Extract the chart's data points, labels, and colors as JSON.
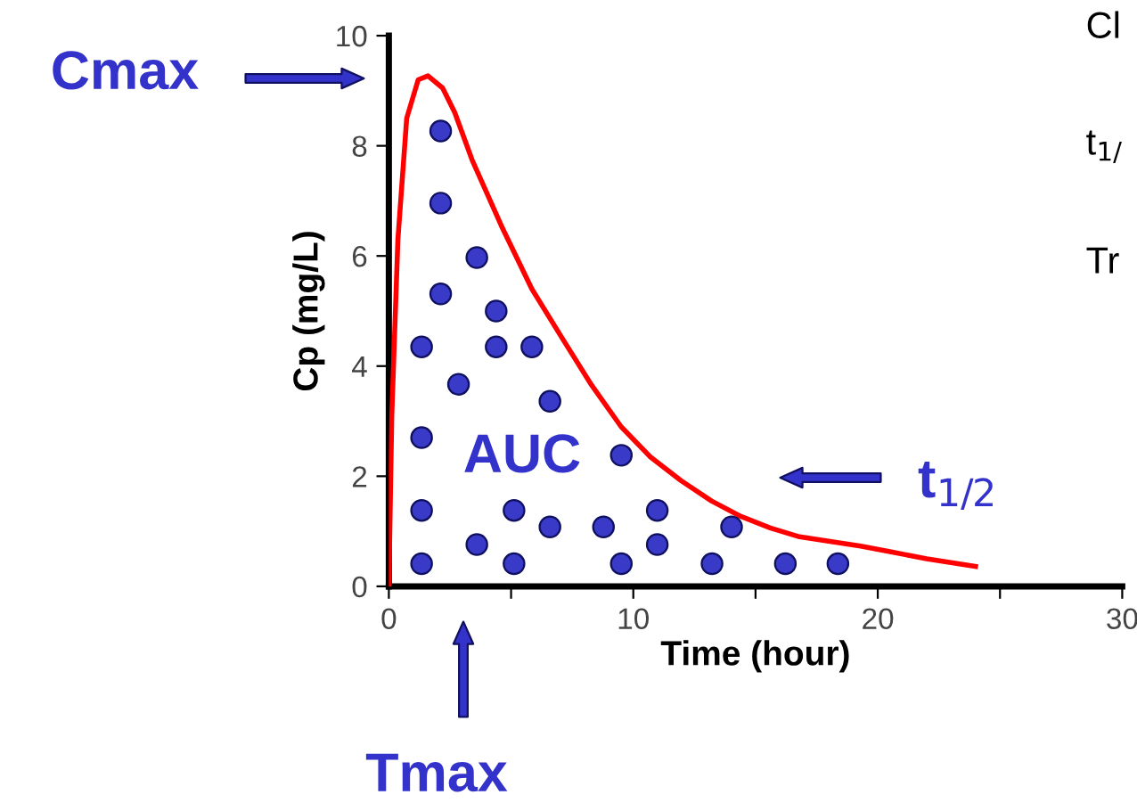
{
  "chart_data": {
    "type": "line",
    "xlabel": "Time (hour)",
    "ylabel": "Cp (mg/L)",
    "xlim": [
      0,
      30
    ],
    "ylim": [
      0,
      10
    ],
    "xticks": [
      0,
      {
        "value": 5,
        "label": null
      },
      10,
      {
        "value": 15,
        "label": null
      },
      20,
      {
        "value": 25,
        "label": null
      },
      30
    ],
    "yticks": [
      0,
      2,
      4,
      6,
      8,
      10
    ],
    "grid": false,
    "legend": false,
    "series": [
      {
        "color": "#ff0000",
        "marker": "none",
        "line_style": "solid",
        "x": [
          0,
          0.12,
          0.37,
          0.73,
          1.2,
          1.6,
          2.2,
          2.7,
          3.4,
          4.6,
          5.85,
          7.1,
          8.3,
          9.5,
          10.7,
          11.95,
          13.2,
          14.4,
          15.6,
          16.8,
          19.3,
          20.5,
          22,
          24
        ],
        "values": [
          0,
          3.1,
          6.3,
          8.5,
          9.2,
          9.27,
          9.05,
          8.6,
          7.75,
          6.55,
          5.4,
          4.5,
          3.65,
          2.9,
          2.35,
          1.92,
          1.55,
          1.27,
          1.06,
          0.9,
          0.73,
          0.63,
          0.5,
          0.36
        ]
      },
      {
        "type": "scatter",
        "color": "#3a3ac8",
        "marker": "circle",
        "x": [
          2.12,
          2.12,
          3.6,
          2.12,
          4.39,
          1.34,
          4.39,
          5.85,
          2.85,
          6.59,
          1.34,
          9.51,
          1.34,
          5.12,
          10.98,
          3.6,
          6.59,
          8.78,
          10.98,
          14.02,
          1.34,
          5.12,
          9.51,
          13.22,
          16.22,
          18.37
        ],
        "values": [
          8.27,
          6.96,
          5.97,
          5.31,
          5.0,
          4.35,
          4.35,
          4.35,
          3.67,
          3.36,
          2.7,
          2.38,
          1.38,
          1.38,
          1.38,
          0.76,
          1.08,
          1.08,
          0.76,
          1.08,
          0.41,
          0.41,
          0.41,
          0.41,
          0.41,
          0.41
        ]
      }
    ],
    "annotations": [
      "Cmax",
      "Tmax",
      "t$_{1/2}$",
      "AUC",
      "Cl",
      "t$_{1/}$",
      "Tr"
    ]
  }
}
